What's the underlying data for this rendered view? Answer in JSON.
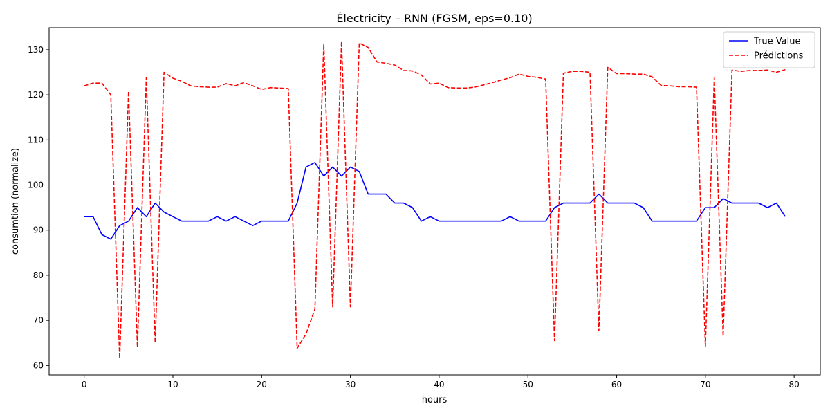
{
  "chart_data": {
    "type": "line",
    "title": "Électricity – RNN (FGSM, eps=0.10)",
    "xlabel": "hours",
    "ylabel": "consumtion (normalize)",
    "xlim": [
      -3.95,
      82.95
    ],
    "ylim": [
      57.9,
      134.9
    ],
    "xticks": [
      0,
      10,
      20,
      30,
      40,
      50,
      60,
      70,
      80
    ],
    "yticks": [
      60,
      70,
      80,
      90,
      100,
      110,
      120,
      130
    ],
    "legend_position": "top-right",
    "grid": false,
    "x": [
      0,
      1,
      2,
      3,
      4,
      5,
      6,
      7,
      8,
      9,
      10,
      11,
      12,
      13,
      14,
      15,
      16,
      17,
      18,
      19,
      20,
      21,
      22,
      23,
      24,
      25,
      26,
      27,
      28,
      29,
      30,
      31,
      32,
      33,
      34,
      35,
      36,
      37,
      38,
      39,
      40,
      41,
      42,
      43,
      44,
      45,
      46,
      47,
      48,
      49,
      50,
      51,
      52,
      53,
      54,
      55,
      56,
      57,
      58,
      59,
      60,
      61,
      62,
      63,
      64,
      65,
      66,
      67,
      68,
      69,
      70,
      71,
      72,
      73,
      74,
      75,
      76,
      77,
      78,
      79
    ],
    "series": [
      {
        "name": "True Value",
        "color": "#0000ff",
        "dash": "solid",
        "values": [
          93,
          93,
          89,
          88,
          91,
          92,
          95,
          93,
          96,
          94,
          93,
          92,
          92,
          92,
          92,
          93,
          92,
          93,
          92,
          91,
          92,
          92,
          92,
          92,
          96,
          104,
          105,
          102,
          104,
          102,
          104,
          103,
          98,
          98,
          98,
          96,
          96,
          95,
          92,
          93,
          92,
          92,
          92,
          92,
          92,
          92,
          92,
          92,
          93,
          92,
          92,
          92,
          92,
          95,
          96,
          96,
          96,
          96,
          98,
          96,
          96,
          96,
          96,
          95,
          92,
          92,
          92,
          92,
          92,
          92,
          95,
          95,
          97,
          96,
          96,
          96,
          96,
          95,
          96,
          93
        ]
      },
      {
        "name": "Prédictions",
        "color": "#ff0000",
        "dash": "dashed",
        "values": [
          122,
          122.6,
          122.6,
          120,
          61.5,
          120.8,
          64,
          123.8,
          65,
          125,
          123.7,
          123,
          122,
          121.8,
          121.7,
          121.7,
          122.5,
          122,
          122.7,
          122,
          121.2,
          121.6,
          121.5,
          121.4,
          63.8,
          67,
          72.5,
          131.3,
          73,
          131.8,
          73,
          131.5,
          130.5,
          127.3,
          127,
          126.6,
          125.4,
          125.3,
          124.4,
          122.4,
          122.6,
          121.6,
          121.5,
          121.5,
          121.7,
          122.2,
          122.7,
          123.3,
          123.8,
          124.6,
          124.1,
          123.9,
          123.5,
          65.5,
          124.8,
          125.2,
          125.2,
          125,
          67.7,
          126.1,
          124.7,
          124.7,
          124.6,
          124.6,
          124,
          122.1,
          122,
          121.8,
          121.8,
          121.7,
          64.2,
          123.8,
          66.5,
          125.5,
          125.2,
          125.4,
          125.4,
          125.5,
          125,
          125.6
        ]
      }
    ]
  }
}
